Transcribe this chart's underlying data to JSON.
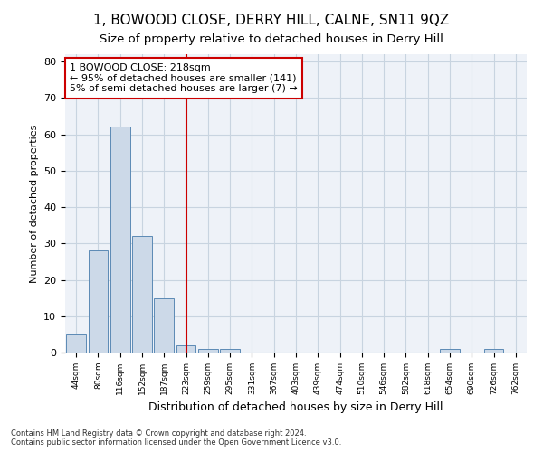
{
  "title": "1, BOWOOD CLOSE, DERRY HILL, CALNE, SN11 9QZ",
  "subtitle": "Size of property relative to detached houses in Derry Hill",
  "xlabel": "Distribution of detached houses by size in Derry Hill",
  "ylabel": "Number of detached properties",
  "footnote1": "Contains HM Land Registry data © Crown copyright and database right 2024.",
  "footnote2": "Contains public sector information licensed under the Open Government Licence v3.0.",
  "bin_labels": [
    "44sqm",
    "80sqm",
    "116sqm",
    "152sqm",
    "187sqm",
    "223sqm",
    "259sqm",
    "295sqm",
    "331sqm",
    "367sqm",
    "403sqm",
    "439sqm",
    "474sqm",
    "510sqm",
    "546sqm",
    "582sqm",
    "618sqm",
    "654sqm",
    "690sqm",
    "726sqm",
    "762sqm"
  ],
  "bar_values": [
    5,
    28,
    62,
    32,
    15,
    2,
    1,
    1,
    0,
    0,
    0,
    0,
    0,
    0,
    0,
    0,
    0,
    1,
    0,
    1,
    0
  ],
  "bar_color": "#ccd9e8",
  "bar_edge_color": "#5b8ab5",
  "vline_bin_index": 5,
  "vline_color": "#cc0000",
  "annotation_line1": "1 BOWOOD CLOSE: 218sqm",
  "annotation_line2": "← 95% of detached houses are smaller (141)",
  "annotation_line3": "5% of semi-detached houses are larger (7) →",
  "annotation_box_color": "#cc0000",
  "ylim": [
    0,
    82
  ],
  "yticks": [
    0,
    10,
    20,
    30,
    40,
    50,
    60,
    70,
    80
  ],
  "grid_color": "#c8d4e0",
  "bg_color": "#eef2f8",
  "title_fontsize": 11,
  "subtitle_fontsize": 9.5,
  "xlabel_fontsize": 9,
  "ylabel_fontsize": 8,
  "bar_width": 0.9
}
